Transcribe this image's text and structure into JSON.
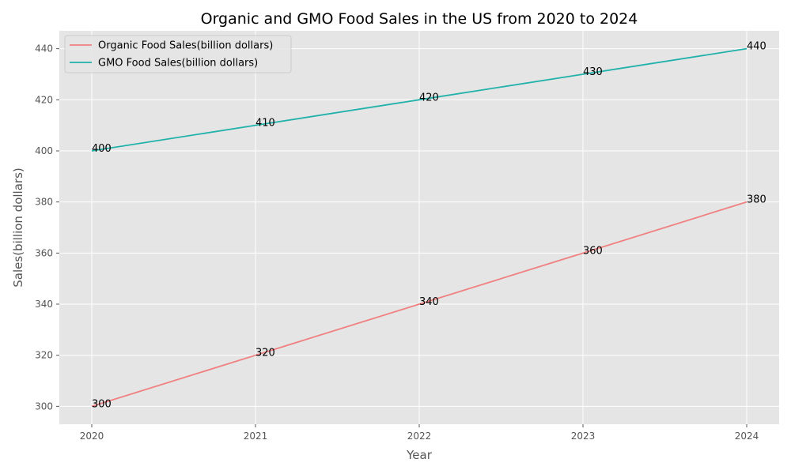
{
  "chart_data": {
    "type": "line",
    "title": "Organic and GMO Food Sales in the US from 2020 to 2024",
    "xlabel": "Year",
    "ylabel": "Sales(billion dollars)",
    "categories": [
      "2020",
      "2021",
      "2022",
      "2023",
      "2024"
    ],
    "yticks": [
      300,
      320,
      340,
      360,
      380,
      400,
      420,
      440
    ],
    "ylim": [
      293,
      447
    ],
    "grid": true,
    "legend_position": "top-left",
    "series": [
      {
        "name": "Organic Food Sales(billion dollars)",
        "values": [
          300,
          320,
          340,
          360,
          380
        ],
        "color": "#f08080",
        "labels": [
          "300",
          "320",
          "340",
          "360",
          "380"
        ]
      },
      {
        "name": "GMO Food Sales(billion dollars)",
        "values": [
          400,
          410,
          420,
          430,
          440
        ],
        "color": "#20b2aa",
        "labels": [
          "400",
          "410",
          "420",
          "430",
          "440"
        ]
      }
    ],
    "colors": {
      "plot_background": "#e5e5e5",
      "grid": "#ffffff"
    }
  }
}
